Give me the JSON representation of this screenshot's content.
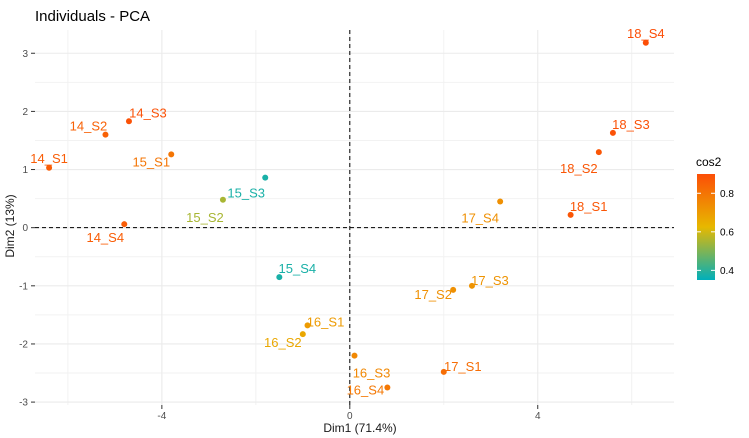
{
  "chart_data": {
    "type": "scatter",
    "title": "Individuals - PCA",
    "xlabel": "Dim1 (71.4%)",
    "ylabel": "Dim2 (13%)",
    "xlim": [
      -6.7,
      6.9
    ],
    "ylim": [
      -3.05,
      3.4
    ],
    "xticks": [
      -4,
      0,
      4
    ],
    "yticks": [
      -3,
      -2,
      -1,
      0,
      1,
      2,
      3
    ],
    "grid": true,
    "legend": {
      "title": "cos2",
      "position": "right",
      "ticks": [
        0.4,
        0.6,
        0.8
      ],
      "range": [
        0.35,
        0.9
      ],
      "gradient": [
        "#00AFBB",
        "#E7B800",
        "#FC4E07"
      ]
    },
    "points": [
      {
        "label": "14_S1",
        "x": -6.4,
        "y": 1.03,
        "cos2": 0.86
      },
      {
        "label": "14_S2",
        "x": -5.2,
        "y": 1.6,
        "cos2": 0.85
      },
      {
        "label": "14_S3",
        "x": -4.7,
        "y": 1.83,
        "cos2": 0.89
      },
      {
        "label": "14_S4",
        "x": -4.8,
        "y": 0.06,
        "cos2": 0.86
      },
      {
        "label": "15_S1",
        "x": -3.8,
        "y": 1.26,
        "cos2": 0.8
      },
      {
        "label": "15_S2",
        "x": -2.7,
        "y": 0.48,
        "cos2": 0.55
      },
      {
        "label": "15_S3",
        "x": -1.8,
        "y": 0.86,
        "cos2": 0.38
      },
      {
        "label": "15_S4",
        "x": -1.5,
        "y": -0.85,
        "cos2": 0.38
      },
      {
        "label": "16_S1",
        "x": -0.9,
        "y": -1.68,
        "cos2": 0.7
      },
      {
        "label": "16_S2",
        "x": -1.0,
        "y": -1.83,
        "cos2": 0.67
      },
      {
        "label": "16_S3",
        "x": 0.1,
        "y": -2.2,
        "cos2": 0.75
      },
      {
        "label": "16_S4",
        "x": 0.8,
        "y": -2.75,
        "cos2": 0.79
      },
      {
        "label": "17_S1",
        "x": 2.0,
        "y": -2.48,
        "cos2": 0.82
      },
      {
        "label": "17_S2",
        "x": 2.2,
        "y": -1.07,
        "cos2": 0.73
      },
      {
        "label": "17_S3",
        "x": 2.6,
        "y": -1.0,
        "cos2": 0.72
      },
      {
        "label": "17_S4",
        "x": 3.2,
        "y": 0.45,
        "cos2": 0.73
      },
      {
        "label": "18_S1",
        "x": 4.7,
        "y": 0.22,
        "cos2": 0.88
      },
      {
        "label": "18_S2",
        "x": 5.3,
        "y": 1.3,
        "cos2": 0.88
      },
      {
        "label": "18_S3",
        "x": 5.6,
        "y": 1.63,
        "cos2": 0.89
      },
      {
        "label": "18_S4",
        "x": 6.3,
        "y": 3.18,
        "cos2": 0.9
      }
    ]
  }
}
